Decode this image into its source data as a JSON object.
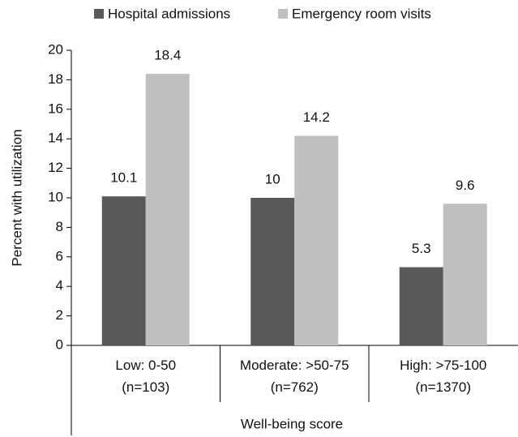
{
  "chart_data": {
    "type": "bar",
    "categories": [
      "Low: 0-50\n(n=103)",
      "Moderate: >50-75\n(n=762)",
      "High: >75-100\n(n=1370)"
    ],
    "series": [
      {
        "name": "Hospital admissions",
        "color": "#595959",
        "values": [
          10.1,
          10,
          5.3
        ]
      },
      {
        "name": "Emergency room visits",
        "color": "#bfbfbf",
        "values": [
          18.4,
          14.2,
          9.6
        ]
      }
    ],
    "ylabel": "Percent with utilization",
    "xlabel": "Well-being score",
    "ylim": [
      0,
      20
    ],
    "yticks": [
      0,
      2,
      4,
      6,
      8,
      10,
      12,
      14,
      16,
      18,
      20
    ],
    "legend": "top"
  }
}
